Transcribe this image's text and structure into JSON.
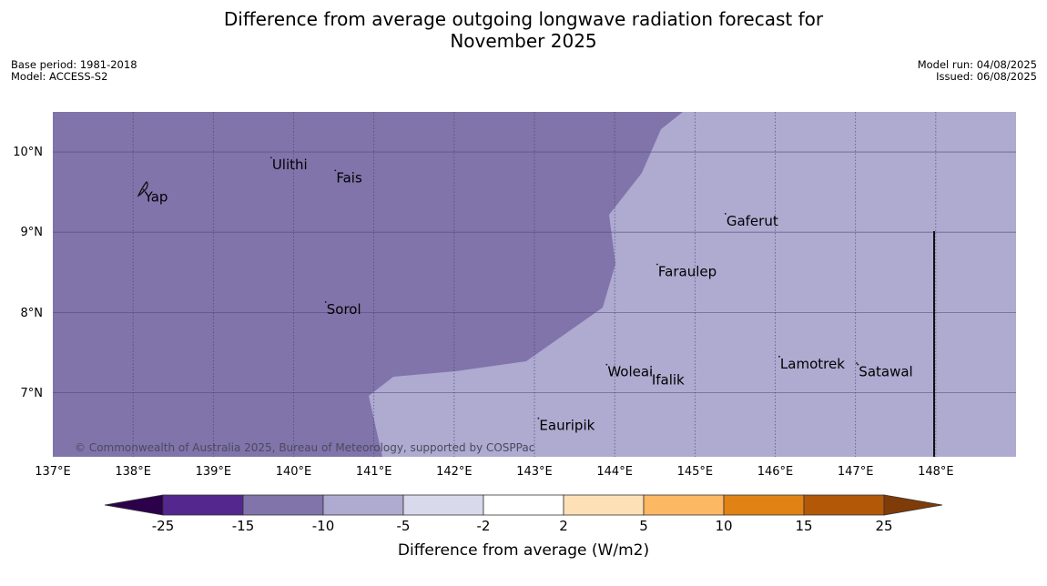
{
  "title_line1": "Difference from average outgoing longwave radiation forecast for",
  "title_line2": "November 2025",
  "base_period": "Base period: 1981-2018",
  "model": "Model: ACCESS-S2",
  "model_run": "Model run: 04/08/2025",
  "issued": "Issued: 06/08/2025",
  "map": {
    "lon_range": [
      137,
      149
    ],
    "lat_range": [
      6.2,
      10.5
    ],
    "lat_labels": [
      "10°N",
      "9°N",
      "8°N",
      "7°N"
    ],
    "lon_labels": [
      "137°E",
      "138°E",
      "139°E",
      "140°E",
      "141°E",
      "142°E",
      "143°E",
      "144°E",
      "145°E",
      "146°E",
      "147°E",
      "148°E"
    ],
    "places": [
      {
        "name": "Ulithi",
        "lon": 139.72,
        "lat": 9.93
      },
      {
        "name": "Fais",
        "lon": 140.52,
        "lat": 9.77
      },
      {
        "name": "Yap",
        "lon": 138.13,
        "lat": 9.53
      },
      {
        "name": "Gaferut",
        "lon": 145.38,
        "lat": 9.23
      },
      {
        "name": "Faraulep",
        "lon": 144.53,
        "lat": 8.6
      },
      {
        "name": "Sorol",
        "lon": 140.4,
        "lat": 8.13
      },
      {
        "name": "Lamotrek",
        "lon": 146.05,
        "lat": 7.45
      },
      {
        "name": "Woleai",
        "lon": 143.9,
        "lat": 7.35
      },
      {
        "name": "Ifalik",
        "lon": 144.45,
        "lat": 7.25
      },
      {
        "name": "Satawal",
        "lon": 147.03,
        "lat": 7.35
      },
      {
        "name": "Eauripik",
        "lon": 143.05,
        "lat": 6.68
      }
    ],
    "region_colors": {
      "west": "#8074ab",
      "east": "#aeaad0"
    },
    "copyright": "© Commonwealth of Australia 2025, Bureau of Meteorology, supported by COSPPac"
  },
  "colorbar": {
    "title": "Difference from average (W/m2)",
    "ticks": [
      "-25",
      "-15",
      "-10",
      "-5",
      "-2",
      "2",
      "5",
      "10",
      "15",
      "25"
    ],
    "colors": [
      "#54278f",
      "#8074ab",
      "#aeaad0",
      "#d8d9eb",
      "#ffffff",
      "#fee0b6",
      "#fdb863",
      "#e08214",
      "#b35806"
    ],
    "under_color": "#2d004b",
    "over_color": "#7f3b08"
  }
}
